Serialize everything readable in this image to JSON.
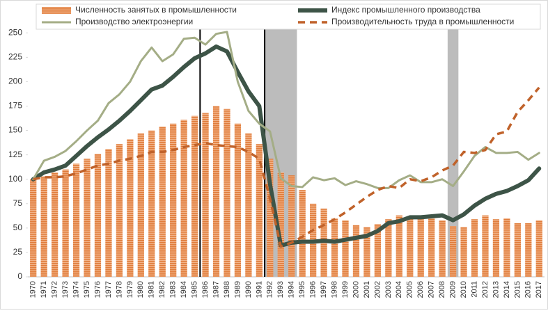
{
  "chart_data": {
    "type": "combo",
    "categories": [
      "1970",
      "1971",
      "1972",
      "1973",
      "1974",
      "1975",
      "1976",
      "1977",
      "1978",
      "1979",
      "1980",
      "1981",
      "1982",
      "1983",
      "1984",
      "1985",
      "1986",
      "1987",
      "1988",
      "1989",
      "1990",
      "1991",
      "1992",
      "1993",
      "1994",
      "1995",
      "1996",
      "1997",
      "1998",
      "1999",
      "2000",
      "2001",
      "2002",
      "2003",
      "2004",
      "2005",
      "2006",
      "2007",
      "2008",
      "2009",
      "2010",
      "2011",
      "2012",
      "2013",
      "2014",
      "2015",
      "2016",
      "2017"
    ],
    "series": [
      {
        "name": "Численность занятых в промышленности",
        "type": "bar",
        "color": "#e8945c",
        "values": [
          100,
          103,
          107,
          110,
          116,
          121,
          126,
          131,
          136,
          141,
          147,
          150,
          154,
          157,
          161,
          165,
          168,
          175,
          172,
          157,
          147,
          136,
          121,
          107,
          104,
          89,
          75,
          70,
          60,
          58,
          53,
          51,
          54,
          59,
          63,
          60,
          59,
          60,
          58,
          52,
          51,
          59,
          63,
          59,
          60,
          55,
          55,
          58
        ]
      },
      {
        "name": "Индекс промышленного производства",
        "type": "line",
        "color": "#3d5447",
        "width": 6,
        "values": [
          100,
          107,
          110,
          114,
          124,
          134,
          143,
          151,
          160,
          170,
          181,
          192,
          196,
          205,
          215,
          224,
          229,
          236,
          231,
          210,
          190,
          175,
          95,
          32,
          35,
          36,
          36,
          37,
          36,
          38,
          40,
          42,
          47,
          55,
          57,
          61,
          61,
          62,
          63,
          58,
          64,
          73,
          80,
          85,
          88,
          93,
          99,
          111
        ]
      },
      {
        "name": "Производство электроэнергии",
        "type": "line",
        "color": "#a4ad86",
        "width": 3,
        "values": [
          100,
          119,
          123,
          129,
          139,
          150,
          160,
          178,
          187,
          200,
          221,
          235,
          221,
          228,
          244,
          245,
          238,
          249,
          251,
          200,
          170,
          157,
          149,
          101,
          93,
          92,
          102,
          99,
          101,
          94,
          98,
          95,
          91,
          91,
          99,
          104,
          97,
          97,
          100,
          93,
          108,
          124,
          133,
          127,
          127,
          128,
          120,
          127
        ]
      },
      {
        "name": "Производительность труда в промышленности",
        "type": "line",
        "color": "#c0622a",
        "width": 3.5,
        "dashed": true,
        "values": [
          100,
          102,
          102,
          103,
          106,
          110,
          114,
          116,
          119,
          121,
          124,
          128,
          128,
          130,
          133,
          135,
          137,
          135,
          134,
          133,
          128,
          121,
          80,
          31,
          35,
          41,
          48,
          53,
          59,
          66,
          74,
          82,
          89,
          93,
          91,
          100,
          98,
          102,
          109,
          114,
          128,
          127,
          130,
          146,
          149,
          169,
          181,
          194
        ]
      }
    ],
    "ylim": [
      0,
      278
    ],
    "yticks": [
      0,
      25,
      50,
      75,
      100,
      125,
      150,
      175,
      200,
      225,
      250
    ],
    "grid": false,
    "shaded_periods": [
      [
        "1992",
        "1994"
      ],
      [
        "2009",
        "2009"
      ]
    ],
    "vertical_lines": [
      "1986",
      "1992"
    ],
    "legend": "top"
  }
}
